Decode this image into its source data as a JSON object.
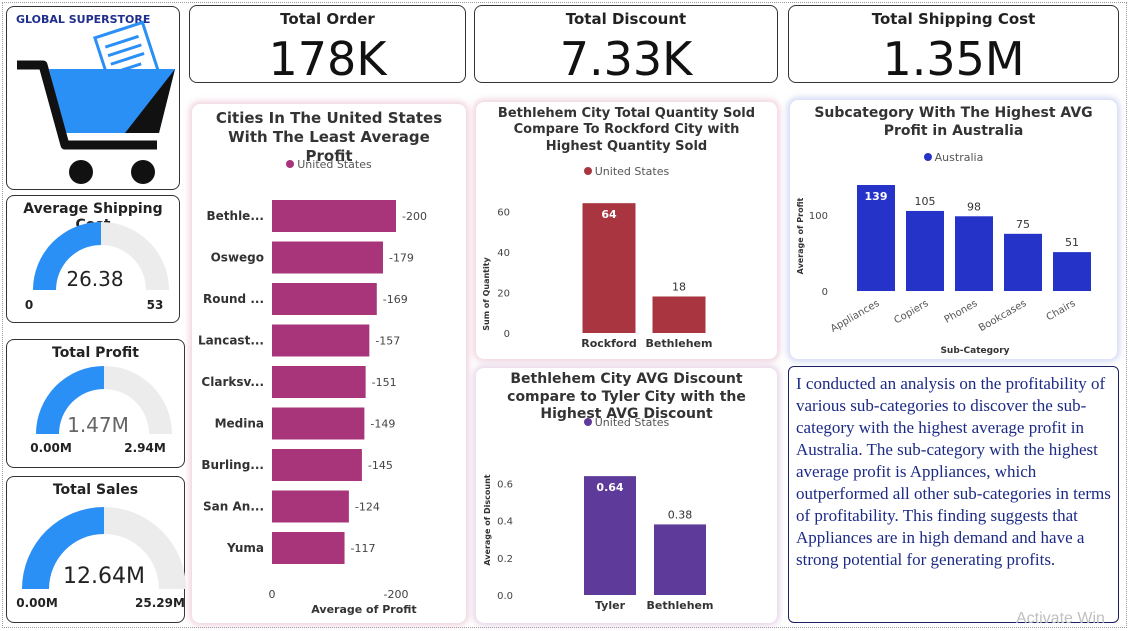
{
  "brand": {
    "title": "GLOBAL SUPERSTORE",
    "logo_icon": "shopping-cart-icon"
  },
  "kpis": [
    {
      "title": "Total Order",
      "value": "178K"
    },
    {
      "title": "Total Discount",
      "value": "7.33K"
    },
    {
      "title": "Total Shipping Cost",
      "value": "1.35M"
    }
  ],
  "gauges": [
    {
      "title": "Average Shipping Cost",
      "value": "26.38",
      "min": "0",
      "max": "53",
      "fraction": 0.5
    },
    {
      "title": "Total Profit",
      "value": "1.47M",
      "min": "0.00M",
      "max": "2.94M",
      "fraction": 0.5
    },
    {
      "title": "Total Sales",
      "value": "12.64M",
      "min": "0.00M",
      "max": "25.29M",
      "fraction": 0.5
    }
  ],
  "colors": {
    "gauge_fill": "#2b90f5",
    "gauge_track": "#ececec",
    "cities": "#a8347a",
    "quantity": "#a83540",
    "discount": "#5e3a9a",
    "subcategory": "#2633c9"
  },
  "chart_data": [
    {
      "type": "bar",
      "orientation": "horizontal",
      "title": "Cities In The United States With The Least Average Profit",
      "legend": [
        "United States"
      ],
      "legend_position": "top",
      "categories": [
        "Bethle...",
        "Oswego",
        "Round ...",
        "Lancast...",
        "Clarksv...",
        "Medina",
        "Burling...",
        "San An...",
        "Yuma"
      ],
      "values": [
        -200,
        -179,
        -169,
        -157,
        -151,
        -149,
        -145,
        -124,
        -117
      ],
      "xlabel": "Average of Profit",
      "ylabel": "",
      "xticks": [
        "0",
        "-200"
      ],
      "xlim": [
        0,
        -200
      ],
      "grid": false
    },
    {
      "type": "bar",
      "title": "Bethlehem City Total Quantity Sold Compare To Rockford City with Highest Quantity Sold",
      "legend": [
        "United States"
      ],
      "legend_position": "top",
      "categories": [
        "Rockford",
        "Bethlehem"
      ],
      "values": [
        64,
        18
      ],
      "xlabel": "",
      "ylabel": "Sum of Quantity",
      "yticks": [
        "0",
        "20",
        "40",
        "60"
      ],
      "ylim": [
        0,
        70
      ],
      "grid": false
    },
    {
      "type": "bar",
      "title": "Subcategory With The Highest AVG Profit in Australia",
      "legend": [
        "Australia"
      ],
      "legend_position": "top",
      "categories": [
        "Appliances",
        "Copiers",
        "Phones",
        "Bookcases",
        "Chairs"
      ],
      "values": [
        139,
        105,
        98,
        75,
        51
      ],
      "xlabel": "Sub-Category",
      "ylabel": "Average of Profit",
      "yticks": [
        "0",
        "100"
      ],
      "ylim": [
        0,
        160
      ],
      "grid": false
    },
    {
      "type": "bar",
      "title": "Bethlehem City AVG Discount compare to Tyler City with the Highest AVG Discount",
      "legend": [
        "United States"
      ],
      "legend_position": "top",
      "categories": [
        "Tyler",
        "Bethlehem"
      ],
      "values": [
        0.64,
        0.38
      ],
      "value_labels": [
        "0.64",
        "0.38"
      ],
      "xlabel": "",
      "ylabel": "Average of Discount",
      "yticks": [
        "0.0",
        "0.2",
        "0.4",
        "0.6"
      ],
      "ylim": [
        0,
        0.7
      ],
      "grid": false
    }
  ],
  "note": "I conducted an analysis on the profitability of various sub-categories to discover the sub-category with the highest average profit in Australia. The sub-category with the highest average profit is Appliances, which outperformed all other sub-categories in terms of profitability. This finding suggests that Appliances are in high demand and have a strong potential for generating profits.",
  "watermark": "Activate Win"
}
